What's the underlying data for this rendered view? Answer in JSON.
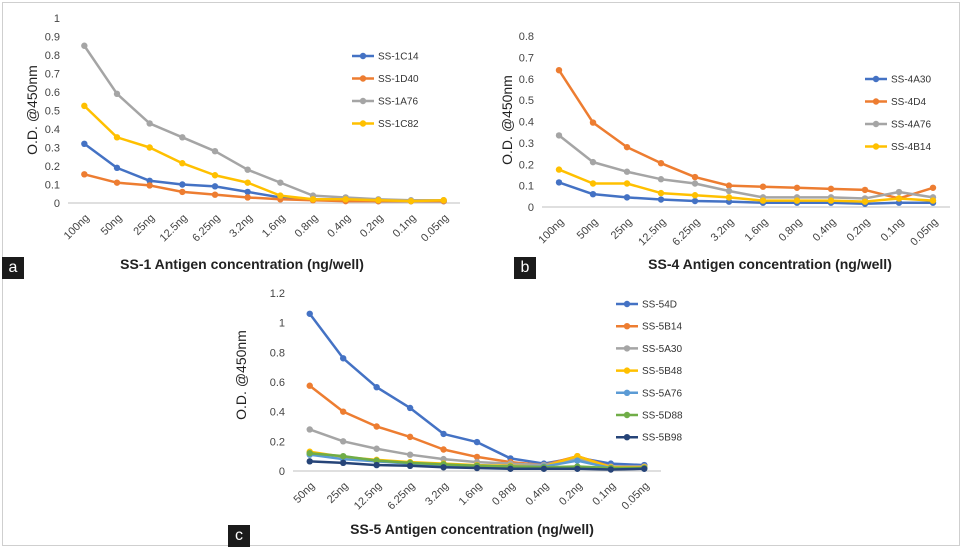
{
  "panels": [
    {
      "label": "a"
    },
    {
      "label": "b"
    },
    {
      "label": "c"
    }
  ],
  "chart_data": [
    {
      "type": "line",
      "xlabel": "SS-1 Antigen concentration (ng/well)",
      "ylabel": "O.D. @450nm",
      "ylim": [
        0,
        1
      ],
      "yticks": [
        "0",
        "0.1",
        "0.2",
        "0.3",
        "0.4",
        "0.5",
        "0.6",
        "0.7",
        "0.8",
        "0.9",
        "1"
      ],
      "categories": [
        "100ng",
        "50ng",
        "25ng",
        "12.5ng",
        "6.25ng",
        "3.2ng",
        "1.6ng",
        "0.8ng",
        "0.4ng",
        "0.2ng",
        "0.1ng",
        "0.05ng"
      ],
      "legend_position": "right",
      "series": [
        {
          "name": "SS-1C14",
          "color": "#4472C4",
          "values": [
            0.32,
            0.19,
            0.12,
            0.1,
            0.09,
            0.06,
            0.03,
            0.02,
            0.02,
            0.01,
            0.01,
            0.01
          ]
        },
        {
          "name": "SS-1D40",
          "color": "#ED7D31",
          "values": [
            0.155,
            0.11,
            0.095,
            0.06,
            0.045,
            0.03,
            0.02,
            0.015,
            0.01,
            0.01,
            0.01,
            0.01
          ]
        },
        {
          "name": "SS-1A76",
          "color": "#A5A5A5",
          "values": [
            0.85,
            0.59,
            0.43,
            0.355,
            0.28,
            0.18,
            0.11,
            0.04,
            0.03,
            0.02,
            0.015,
            0.015
          ]
        },
        {
          "name": "SS-1C82",
          "color": "#FFC000",
          "values": [
            0.525,
            0.355,
            0.3,
            0.215,
            0.15,
            0.11,
            0.04,
            0.02,
            0.02,
            0.015,
            0.01,
            0.015
          ]
        }
      ]
    },
    {
      "type": "line",
      "xlabel": "SS-4 Antigen concentration (ng/well)",
      "ylabel": "O.D. @450nm",
      "ylim": [
        0,
        0.8
      ],
      "yticks": [
        "0",
        "0.1",
        "0.2",
        "0.3",
        "0.4",
        "0.5",
        "0.6",
        "0.7",
        "0.8"
      ],
      "categories": [
        "100ng",
        "50ng",
        "25ng",
        "12.5ng",
        "6.25ng",
        "3.2ng",
        "1.6ng",
        "0.8ng",
        "0.4ng",
        "0.2ng",
        "0.1ng",
        "0.05ng"
      ],
      "legend_position": "right",
      "series": [
        {
          "name": "SS-4A30",
          "color": "#4472C4",
          "values": [
            0.115,
            0.06,
            0.045,
            0.035,
            0.028,
            0.025,
            0.02,
            0.02,
            0.02,
            0.015,
            0.02,
            0.02
          ]
        },
        {
          "name": "SS-4D4",
          "color": "#ED7D31",
          "values": [
            0.64,
            0.395,
            0.28,
            0.205,
            0.14,
            0.1,
            0.095,
            0.09,
            0.085,
            0.08,
            0.04,
            0.09
          ]
        },
        {
          "name": "SS-4A76",
          "color": "#A5A5A5",
          "values": [
            0.335,
            0.21,
            0.165,
            0.13,
            0.11,
            0.075,
            0.045,
            0.045,
            0.045,
            0.04,
            0.07,
            0.045
          ]
        },
        {
          "name": "SS-4B14",
          "color": "#FFC000",
          "values": [
            0.175,
            0.11,
            0.11,
            0.065,
            0.055,
            0.045,
            0.03,
            0.03,
            0.03,
            0.025,
            0.04,
            0.03
          ]
        }
      ]
    },
    {
      "type": "line",
      "xlabel": "SS-5 Antigen concentration (ng/well)",
      "ylabel": "O.D. @450nm",
      "ylim": [
        0,
        1.2
      ],
      "yticks": [
        "0",
        "0.2",
        "0.4",
        "0.6",
        "0.8",
        "1",
        "1.2"
      ],
      "categories": [
        "50ng",
        "25ng",
        "12.5ng",
        "6.25ng",
        "3.2ng",
        "1.6ng",
        "0.8ng",
        "0.4ng",
        "0.2ng",
        "0.1ng",
        "0.05ng"
      ],
      "legend_position": "right",
      "series": [
        {
          "name": "SS-54D",
          "color": "#4472C4",
          "values": [
            1.06,
            0.76,
            0.565,
            0.425,
            0.25,
            0.195,
            0.085,
            0.05,
            0.09,
            0.05,
            0.04
          ]
        },
        {
          "name": "SS-5B14",
          "color": "#ED7D31",
          "values": [
            0.575,
            0.4,
            0.3,
            0.23,
            0.145,
            0.095,
            0.06,
            0.04,
            0.1,
            0.03,
            0.03
          ]
        },
        {
          "name": "SS-5A30",
          "color": "#A5A5A5",
          "values": [
            0.28,
            0.2,
            0.15,
            0.11,
            0.08,
            0.06,
            0.05,
            0.04,
            0.085,
            0.03,
            0.03
          ]
        },
        {
          "name": "SS-5B48",
          "color": "#FFC000",
          "values": [
            0.13,
            0.095,
            0.075,
            0.06,
            0.05,
            0.04,
            0.035,
            0.03,
            0.1,
            0.025,
            0.025
          ]
        },
        {
          "name": "SS-5A76",
          "color": "#5B9BD5",
          "values": [
            0.11,
            0.08,
            0.065,
            0.05,
            0.04,
            0.035,
            0.03,
            0.03,
            0.07,
            0.02,
            0.02
          ]
        },
        {
          "name": "SS-5D88",
          "color": "#70AD47",
          "values": [
            0.12,
            0.1,
            0.07,
            0.055,
            0.045,
            0.035,
            0.03,
            0.025,
            0.03,
            0.02,
            0.02
          ]
        },
        {
          "name": "SS-5B98",
          "color": "#264478",
          "values": [
            0.065,
            0.055,
            0.04,
            0.035,
            0.025,
            0.02,
            0.015,
            0.015,
            0.015,
            0.01,
            0.015
          ]
        }
      ]
    }
  ]
}
